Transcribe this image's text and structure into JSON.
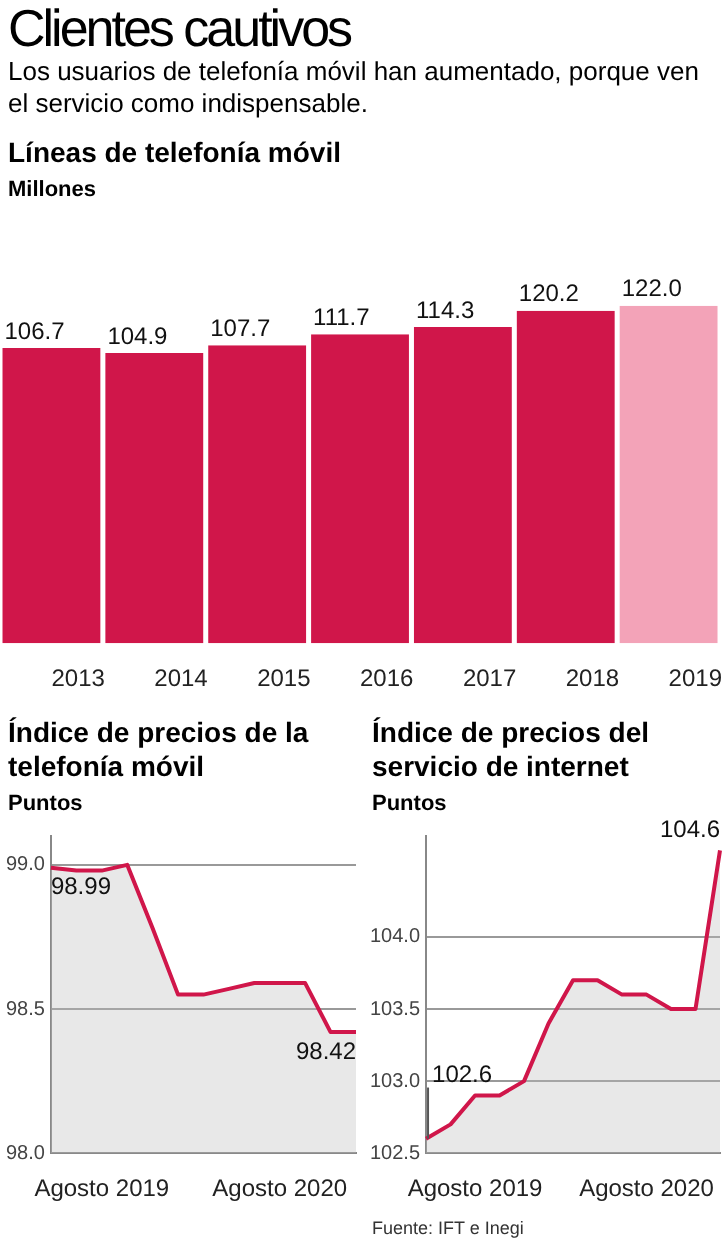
{
  "chart_data": [
    {
      "type": "other",
      "title": "Clientes cautivos",
      "subtitle": "Los usuarios de telefonía móvil han aumentado, porque ven el servicio como indispensable."
    },
    {
      "type": "bar",
      "title": "Líneas de telefonía móvil",
      "subtitle": "Millones",
      "categories": [
        "2013",
        "2014",
        "2015",
        "2016",
        "2017",
        "2018",
        "2019"
      ],
      "values": [
        106.7,
        104.9,
        107.7,
        111.7,
        114.3,
        120.2,
        122.0
      ],
      "colors": [
        "#d0164a",
        "#d0164a",
        "#d0164a",
        "#d0164a",
        "#d0164a",
        "#d0164a",
        "#f3a3b8"
      ],
      "value_labels": [
        "106.7",
        "104.9",
        "107.7",
        "111.7",
        "114.3",
        "120.2",
        "122.0"
      ],
      "tick_labels": "x"
    },
    {
      "type": "area",
      "title": "Índice de precios de la telefonía móvil",
      "subtitle": "Puntos",
      "categories": [
        null,
        null,
        "Agosto 2019",
        null,
        null,
        null,
        null,
        null,
        null,
        "Agosto 2020",
        null,
        null,
        null
      ],
      "series": [
        {
          "color": "#d0164a",
          "values": [
            98.99,
            98.98,
            98.98,
            99.0,
            98.78,
            98.55,
            98.55,
            98.57,
            98.59,
            98.59,
            98.59,
            98.42,
            98.42
          ],
          "value_labels": [
            "98.99",
            null,
            null,
            null,
            null,
            null,
            null,
            null,
            null,
            null,
            null,
            null,
            "98.42"
          ]
        }
      ],
      "ylim": [
        98.0,
        99.1
      ],
      "yticks": [
        {
          "value": 98,
          "label": "98.0"
        },
        {
          "value": 98.5,
          "label": "98.5"
        },
        {
          "value": 99,
          "label": "99.0"
        }
      ],
      "grid": "y",
      "marker": "none",
      "line_style": "solid"
    },
    {
      "type": "area",
      "title": "Índice de precios del servicio de internet",
      "subtitle": "Puntos",
      "categories": [
        null,
        null,
        "Agosto 2019",
        null,
        null,
        null,
        null,
        null,
        null,
        "Agosto 2020",
        null,
        null,
        null
      ],
      "series": [
        {
          "color": "#d0164a",
          "values": [
            102.6,
            102.7,
            102.9,
            102.9,
            103.0,
            103.4,
            103.7,
            103.7,
            103.6,
            103.6,
            103.5,
            103.5,
            104.6
          ],
          "value_labels": [
            "102.6",
            null,
            null,
            null,
            null,
            null,
            null,
            null,
            null,
            null,
            null,
            null,
            "104.6"
          ]
        }
      ],
      "ylim": [
        102.5,
        104.7
      ],
      "yticks": [
        {
          "value": 102.5,
          "label": "102.5"
        },
        {
          "value": 103,
          "label": "103.0"
        },
        {
          "value": 103.5,
          "label": "103.5"
        },
        {
          "value": 104,
          "label": "104.0"
        }
      ],
      "grid": "y",
      "marker": "none",
      "line_style": "solid",
      "annotations": [
        "Fuente: IFT e Inegi"
      ]
    }
  ]
}
